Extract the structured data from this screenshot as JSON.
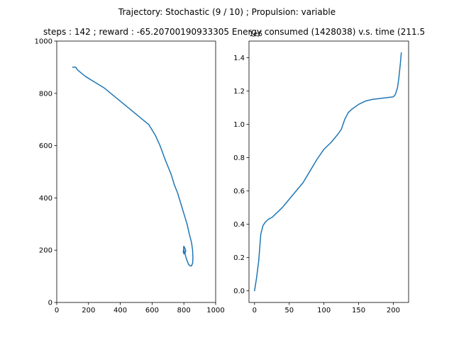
{
  "figure": {
    "suptitle": "Trajectory: Stochastic (9 / 10) ; Propulsion: variable"
  },
  "colors": {
    "line": "#1f77b4",
    "axes": "#000000",
    "background": "#ffffff"
  },
  "chart_data": [
    {
      "type": "line",
      "title": "steps : 142 ; reward : -65.20700190933305",
      "xlabel": "",
      "ylabel": "",
      "xlim": [
        0,
        1000
      ],
      "ylim": [
        0,
        1000
      ],
      "grid": false,
      "legend": "none",
      "xticks": [
        0,
        200,
        400,
        600,
        800,
        1000
      ],
      "yticks": [
        0,
        200,
        400,
        600,
        800,
        1000
      ],
      "xtick_labels": [
        "0",
        "200",
        "400",
        "600",
        "800",
        "1000"
      ],
      "ytick_labels": [
        "0",
        "200",
        "400",
        "600",
        "800",
        "1000"
      ],
      "series": [
        {
          "x": [
            100,
            120,
            130,
            150,
            180,
            220,
            260,
            300,
            340,
            380,
            420,
            460,
            500,
            540,
            580,
            620,
            650,
            680,
            700,
            720,
            740,
            760,
            780,
            800,
            820,
            835,
            848,
            855,
            857,
            855,
            848,
            840,
            830,
            820,
            812,
            806,
            800,
            798,
            800,
            806,
            812,
            808,
            800,
            796,
            800
          ],
          "y": [
            900,
            900,
            890,
            880,
            865,
            850,
            835,
            820,
            800,
            780,
            760,
            740,
            720,
            700,
            680,
            640,
            600,
            550,
            520,
            490,
            450,
            420,
            380,
            340,
            300,
            260,
            230,
            200,
            170,
            150,
            140,
            140,
            145,
            160,
            175,
            190,
            200,
            210,
            215,
            208,
            198,
            190,
            186,
            195,
            205
          ]
        }
      ]
    },
    {
      "type": "line",
      "title": "Energy consumed (1428038) v.s. time (211.5",
      "xlabel": "",
      "ylabel": "",
      "xlim": [
        -8,
        222
      ],
      "ylim": [
        -0.07,
        1.5
      ],
      "offset_text": "1e6",
      "grid": false,
      "legend": "none",
      "xticks": [
        0,
        50,
        100,
        150,
        200
      ],
      "yticks": [
        0.0,
        0.2,
        0.4,
        0.6,
        0.8,
        1.0,
        1.2,
        1.4
      ],
      "xtick_labels": [
        "0",
        "50",
        "100",
        "150",
        "200"
      ],
      "ytick_labels": [
        "0.0",
        "0.2",
        "0.4",
        "0.6",
        "0.8",
        "1.0",
        "1.2",
        "1.4"
      ],
      "series": [
        {
          "x": [
            0,
            3,
            6,
            9,
            12,
            15,
            20,
            25,
            30,
            40,
            50,
            60,
            70,
            80,
            90,
            100,
            110,
            120,
            125,
            130,
            135,
            140,
            150,
            160,
            170,
            180,
            190,
            200,
            203,
            206,
            208,
            210,
            211.5
          ],
          "y": [
            0.0,
            0.08,
            0.18,
            0.34,
            0.39,
            0.41,
            0.43,
            0.44,
            0.46,
            0.5,
            0.55,
            0.6,
            0.65,
            0.72,
            0.79,
            0.85,
            0.89,
            0.94,
            0.97,
            1.03,
            1.07,
            1.09,
            1.12,
            1.14,
            1.15,
            1.155,
            1.16,
            1.165,
            1.18,
            1.22,
            1.28,
            1.36,
            1.43
          ]
        }
      ]
    }
  ]
}
